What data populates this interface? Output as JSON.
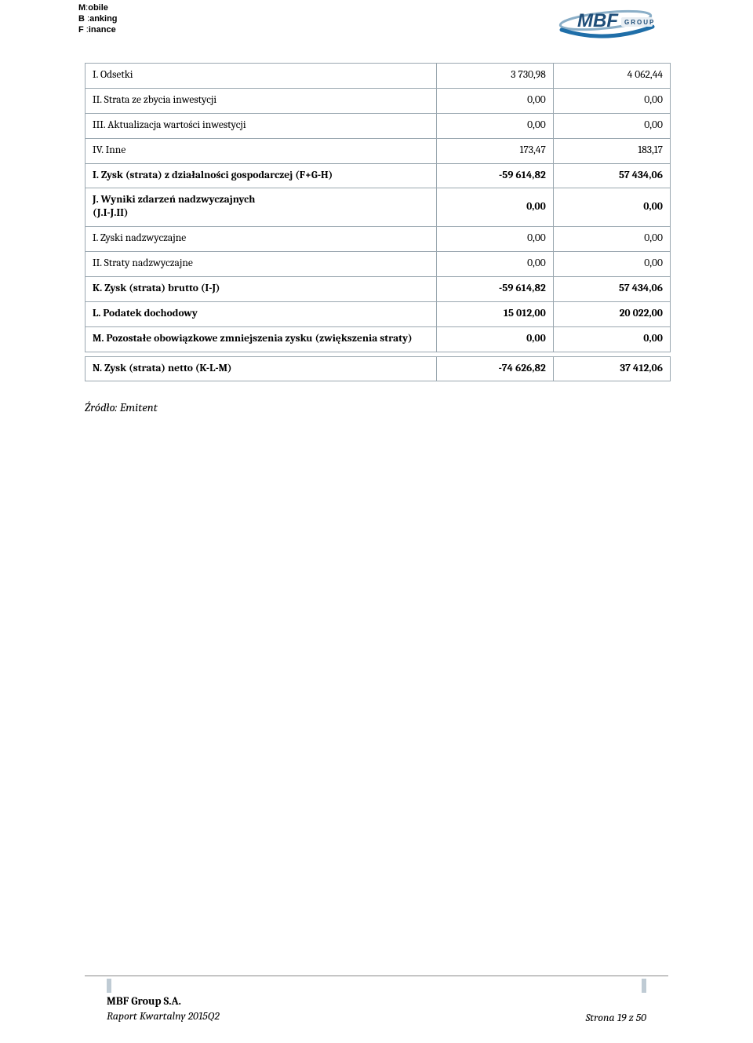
{
  "wordmark": {
    "line1_initial": "M",
    "line1_rest": "obile",
    "line2_initial": "B",
    "line2_rest": "anking",
    "line3_initial": "F",
    "line3_rest": "inance"
  },
  "logo": {
    "text_main": "MBF",
    "text_sub": "GROUP",
    "color_swoosh_top": "#8aaec7",
    "color_swoosh_bottom": "#1f6ea8",
    "color_text": "#1f4e79"
  },
  "table": {
    "rows": [
      {
        "label": "I. Odsetki",
        "v1": "3 730,98",
        "v2": "4 062,44",
        "bold": false
      },
      {
        "label": "II. Strata ze zbycia inwestycji",
        "v1": "0,00",
        "v2": "0,00",
        "bold": false
      },
      {
        "label": "III. Aktualizacja wartości inwestycji",
        "v1": "0,00",
        "v2": "0,00",
        "bold": false
      },
      {
        "label": "IV. Inne",
        "v1": "173,47",
        "v2": "183,17",
        "bold": false
      },
      {
        "label": "I. Zysk (strata) z działalności gospodarczej (F+G-H)",
        "v1": "-59 614,82",
        "v2": "57 434,06",
        "bold": true
      },
      {
        "label": "J. Wyniki zdarzeń nadzwyczajnych\n(J.I-J.II)",
        "v1": "0,00",
        "v2": "0,00",
        "bold": true
      },
      {
        "label": "I. Zyski nadzwyczajne",
        "v1": "0,00",
        "v2": "0,00",
        "bold": false
      },
      {
        "label": "II. Straty nadzwyczajne",
        "v1": "0,00",
        "v2": "0,00",
        "bold": false
      },
      {
        "label": "K. Zysk (strata) brutto (I-J)",
        "v1": "-59 614,82",
        "v2": "57 434,06",
        "bold": true
      },
      {
        "label": "L. Podatek dochodowy",
        "v1": "15 012,00",
        "v2": "20 022,00",
        "bold": true
      },
      {
        "label": "M. Pozostałe obowiązkowe zmniejszenia zysku (zwiększenia straty)",
        "v1": "0,00",
        "v2": "0,00",
        "bold": true
      }
    ],
    "final_row": {
      "label": "N. Zysk (strata) netto (K-L-M)",
      "v1": "-74 626,82",
      "v2": "37 412,06"
    }
  },
  "source_label": "Źródło: Emitent",
  "footer": {
    "company": "MBF Group S.A.",
    "report": "Raport Kwartalny 2015Q2",
    "page": "Strona 19 z 50"
  },
  "colors": {
    "cell_border": "#9aa7b0",
    "tick": "#bfcbd4",
    "rule": "#888888",
    "text": "#000000",
    "background": "#ffffff"
  }
}
